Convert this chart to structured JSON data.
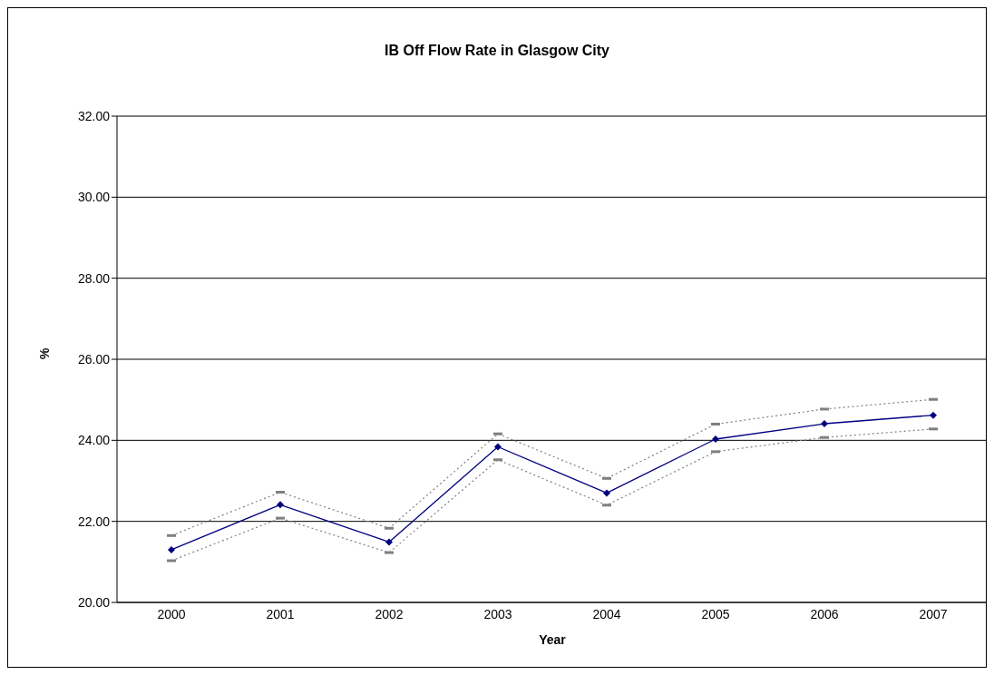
{
  "chart_data": {
    "type": "line",
    "title": "IB Off Flow Rate in Glasgow City",
    "xlabel": "Year",
    "ylabel": "%",
    "categories": [
      "2000",
      "2001",
      "2002",
      "2003",
      "2004",
      "2005",
      "2006",
      "2007"
    ],
    "series": [
      {
        "color": "#808080",
        "line_style": "dotted",
        "marker": "square",
        "values": [
          21.65,
          22.72,
          21.83,
          24.16,
          23.06,
          24.4,
          24.77,
          25.01
        ]
      },
      {
        "color": "#000080",
        "values": [
          21.3,
          22.41,
          21.49,
          23.84,
          22.7,
          24.03,
          24.41,
          24.62
        ]
      },
      {
        "color": "#808080",
        "line_style": "dotted",
        "marker": "square",
        "values": [
          21.03,
          22.08,
          21.23,
          23.52,
          22.4,
          23.72,
          24.07,
          24.28
        ]
      }
    ],
    "ylim": [
      20,
      32
    ],
    "yticks": [
      {
        "value": 20,
        "label": "20.00"
      },
      {
        "value": 22,
        "label": "22.00"
      },
      {
        "value": 24,
        "label": "24.00"
      },
      {
        "value": 26,
        "label": "26.00"
      },
      {
        "value": 28,
        "label": "28.00"
      },
      {
        "value": 30,
        "label": "30.00"
      },
      {
        "value": 32,
        "label": "32.00"
      }
    ],
    "grid": "y",
    "marker": "diamond",
    "line_style": "solid"
  }
}
